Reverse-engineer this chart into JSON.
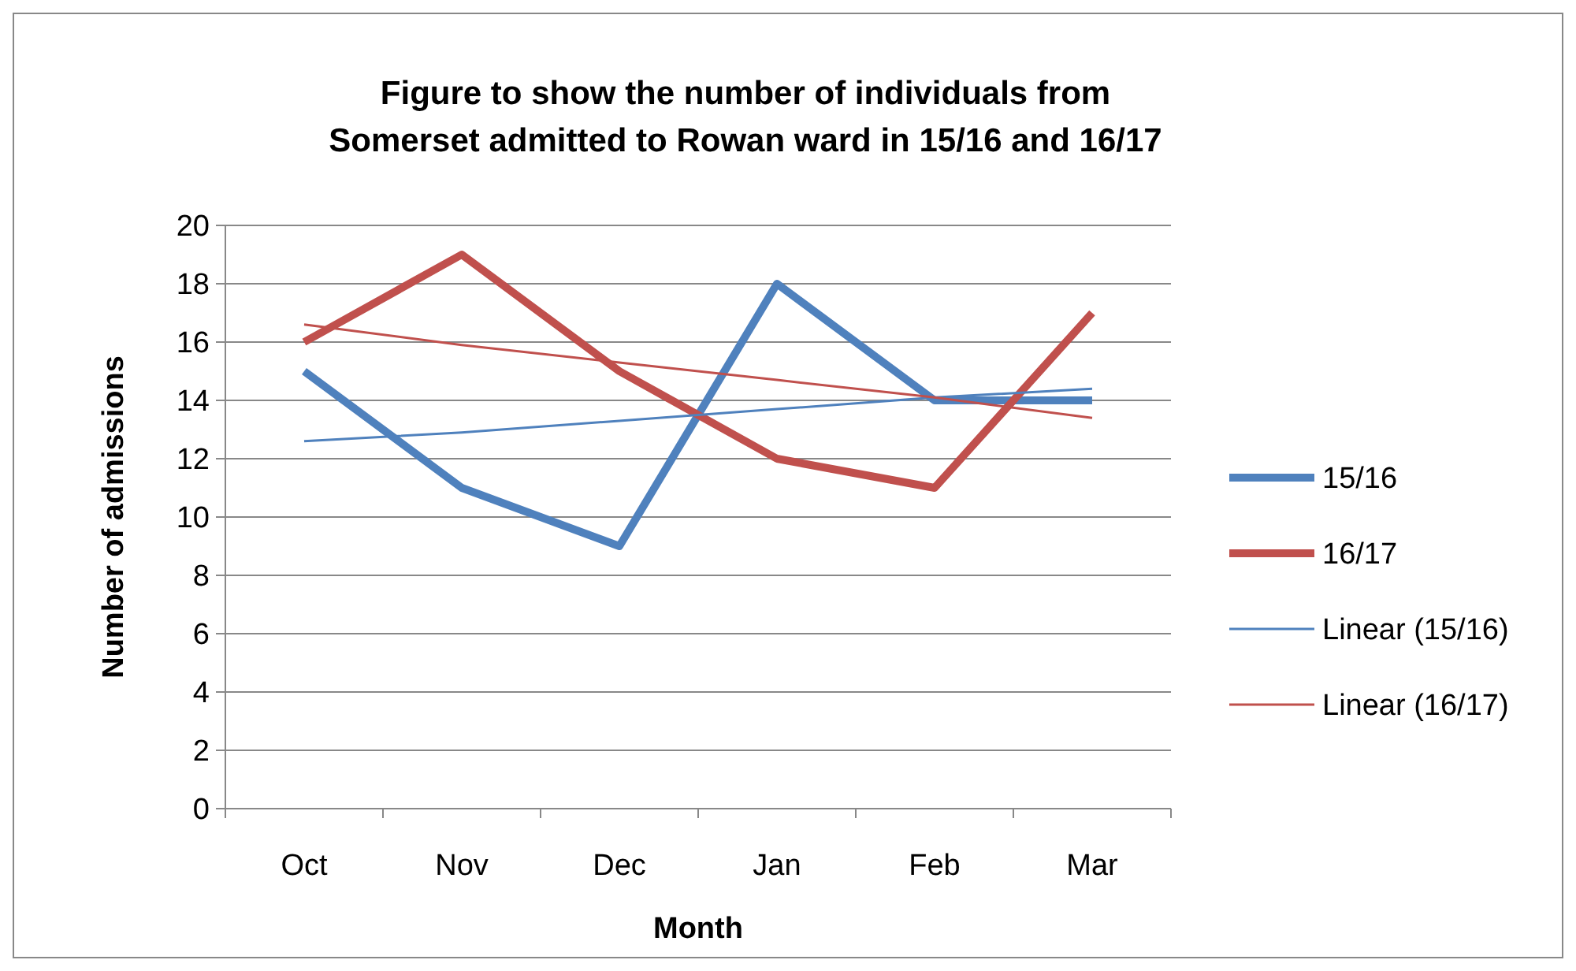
{
  "chart_data": {
    "type": "line",
    "title": "Figure to show the number of individuals from Somerset admitted to Rowan ward in 15/16 and 16/17",
    "xlabel": "Month",
    "ylabel": "Number of admissions",
    "categories": [
      "Oct",
      "Nov",
      "Dec",
      "Jan",
      "Feb",
      "Mar"
    ],
    "series": [
      {
        "name": "15/16",
        "color": "#4f81bd",
        "values": [
          15,
          11,
          9,
          18,
          14,
          14
        ]
      },
      {
        "name": "16/17",
        "color": "#c0504d",
        "values": [
          16,
          19,
          15,
          12,
          11,
          17
        ]
      },
      {
        "name": "Linear (15/16)",
        "color": "#4f81bd",
        "values": [
          12.6,
          12.9,
          13.3,
          13.7,
          14.1,
          14.4
        ]
      },
      {
        "name": "Linear (16/17)",
        "color": "#c0504d",
        "values": [
          16.6,
          15.9,
          15.3,
          14.7,
          14.1,
          13.4
        ]
      }
    ],
    "ylim": [
      0,
      20
    ],
    "yticks": [
      0,
      2,
      4,
      6,
      8,
      10,
      12,
      14,
      16,
      18,
      20
    ],
    "grid": "y",
    "legend": "right",
    "line_style": "solid"
  }
}
